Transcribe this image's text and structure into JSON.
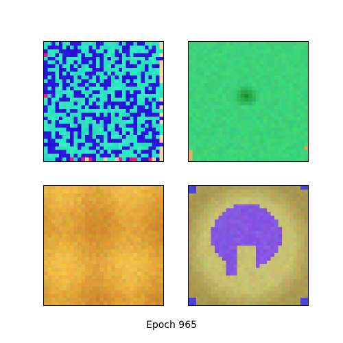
{
  "caption": "Epoch 965",
  "panels": [
    {
      "name": "generated-sample-1",
      "style": "noisy-cyan-blue",
      "colors": {
        "a": "#2de6c0",
        "b": "#2a14d8",
        "edge": "#f0d8a0",
        "accent": "#e81a8c"
      }
    },
    {
      "name": "generated-sample-2",
      "style": "green-blob",
      "colors": {
        "base": "#3cd27a",
        "blob": "#1e8a2a"
      }
    },
    {
      "name": "generated-sample-3",
      "style": "orange-texture",
      "colors": {
        "base": "#e8a840",
        "light": "#f2c04a",
        "dark": "#d08a2c"
      }
    },
    {
      "name": "generated-sample-4",
      "style": "purple-blob-on-olive",
      "colors": {
        "bg": "#c8c070",
        "ring": "#a89850",
        "blob": "#8a5ae8",
        "corner": "#4a40e0"
      }
    }
  ]
}
